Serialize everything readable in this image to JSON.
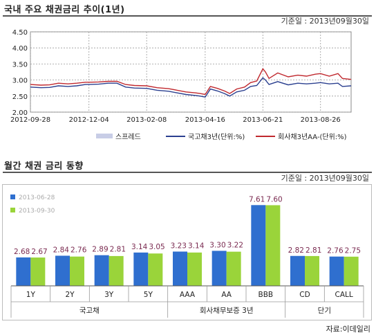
{
  "section1": {
    "title": "국내 주요 채권금리 추이(1년)",
    "ref_date": "기준일 : 2013년09월30일"
  },
  "section2": {
    "title": "월간 채권 금리 동향",
    "ref_date": "기준일 : 2013년09월30일"
  },
  "source": "자료:이데일리",
  "chart_data": [
    {
      "type": "line",
      "title": "국내 주요 채권금리 추이(1년)",
      "ylim": [
        2.0,
        4.5
      ],
      "yticks": [
        "4.50",
        "4.00",
        "3.50",
        "3.00",
        "2.50",
        "2.00"
      ],
      "xticks": [
        "2012-09-28",
        "2012-12-04",
        "2013-02-08",
        "2013-04-16",
        "2013-06-21",
        "2013-08-26"
      ],
      "x_range": [
        "2012-09-28",
        "2013-09-30"
      ],
      "grid": true,
      "legend_position": "bottom",
      "series": [
        {
          "name": "스프레드",
          "color": "#c8cde6",
          "points": []
        },
        {
          "name": "국고채3년(단위:%)",
          "color": "#2a3f8f",
          "points": [
            [
              "2012-09-28",
              2.78
            ],
            [
              "2012-10-10",
              2.76
            ],
            [
              "2012-10-20",
              2.77
            ],
            [
              "2012-10-30",
              2.82
            ],
            [
              "2012-11-10",
              2.8
            ],
            [
              "2012-11-20",
              2.82
            ],
            [
              "2012-11-30",
              2.86
            ],
            [
              "2012-12-04",
              2.86
            ],
            [
              "2012-12-15",
              2.87
            ],
            [
              "2012-12-26",
              2.9
            ],
            [
              "2013-01-05",
              2.9
            ],
            [
              "2013-01-15",
              2.78
            ],
            [
              "2013-01-25",
              2.75
            ],
            [
              "2013-02-08",
              2.74
            ],
            [
              "2013-02-20",
              2.68
            ],
            [
              "2013-03-05",
              2.65
            ],
            [
              "2013-03-15",
              2.6
            ],
            [
              "2013-03-25",
              2.55
            ],
            [
              "2013-04-05",
              2.52
            ],
            [
              "2013-04-10",
              2.5
            ],
            [
              "2013-04-16",
              2.47
            ],
            [
              "2013-04-22",
              2.72
            ],
            [
              "2013-04-30",
              2.66
            ],
            [
              "2013-05-08",
              2.58
            ],
            [
              "2013-05-14",
              2.5
            ],
            [
              "2013-05-22",
              2.63
            ],
            [
              "2013-05-31",
              2.68
            ],
            [
              "2013-06-07",
              2.8
            ],
            [
              "2013-06-14",
              2.83
            ],
            [
              "2013-06-21",
              3.07
            ],
            [
              "2013-06-24",
              3.0
            ],
            [
              "2013-06-28",
              2.86
            ],
            [
              "2013-07-08",
              2.95
            ],
            [
              "2013-07-20",
              2.85
            ],
            [
              "2013-07-31",
              2.9
            ],
            [
              "2013-08-10",
              2.88
            ],
            [
              "2013-08-20",
              2.9
            ],
            [
              "2013-08-26",
              2.92
            ],
            [
              "2013-09-05",
              2.88
            ],
            [
              "2013-09-15",
              2.9
            ],
            [
              "2013-09-20",
              2.8
            ],
            [
              "2013-09-30",
              2.82
            ]
          ]
        },
        {
          "name": "회사채3년AA-(단위:%)",
          "color": "#c0282e",
          "points": [
            [
              "2012-09-28",
              2.86
            ],
            [
              "2012-10-10",
              2.84
            ],
            [
              "2012-10-20",
              2.85
            ],
            [
              "2012-10-30",
              2.9
            ],
            [
              "2012-11-10",
              2.88
            ],
            [
              "2012-11-20",
              2.9
            ],
            [
              "2012-11-30",
              2.93
            ],
            [
              "2012-12-04",
              2.93
            ],
            [
              "2012-12-15",
              2.94
            ],
            [
              "2012-12-26",
              2.96
            ],
            [
              "2013-01-05",
              2.96
            ],
            [
              "2013-01-15",
              2.86
            ],
            [
              "2013-01-25",
              2.83
            ],
            [
              "2013-02-08",
              2.82
            ],
            [
              "2013-02-20",
              2.76
            ],
            [
              "2013-03-05",
              2.73
            ],
            [
              "2013-03-15",
              2.68
            ],
            [
              "2013-03-25",
              2.63
            ],
            [
              "2013-04-05",
              2.6
            ],
            [
              "2013-04-10",
              2.58
            ],
            [
              "2013-04-16",
              2.55
            ],
            [
              "2013-04-22",
              2.8
            ],
            [
              "2013-04-30",
              2.74
            ],
            [
              "2013-05-08",
              2.66
            ],
            [
              "2013-05-14",
              2.58
            ],
            [
              "2013-05-22",
              2.72
            ],
            [
              "2013-05-31",
              2.78
            ],
            [
              "2013-06-07",
              2.92
            ],
            [
              "2013-06-14",
              2.97
            ],
            [
              "2013-06-21",
              3.35
            ],
            [
              "2013-06-24",
              3.25
            ],
            [
              "2013-06-28",
              3.05
            ],
            [
              "2013-07-08",
              3.22
            ],
            [
              "2013-07-20",
              3.1
            ],
            [
              "2013-07-31",
              3.15
            ],
            [
              "2013-08-10",
              3.12
            ],
            [
              "2013-08-20",
              3.18
            ],
            [
              "2013-08-26",
              3.2
            ],
            [
              "2013-09-05",
              3.12
            ],
            [
              "2013-09-15",
              3.2
            ],
            [
              "2013-09-20",
              3.05
            ],
            [
              "2013-09-30",
              3.02
            ]
          ]
        }
      ]
    },
    {
      "type": "bar",
      "title": "월간 채권 금리 동향",
      "categories": [
        "1Y",
        "2Y",
        "3Y",
        "5Y",
        "AAA",
        "AA",
        "BBB",
        "CD",
        "CALL"
      ],
      "groups": [
        {
          "label": "국고채",
          "categories": [
            "1Y",
            "2Y",
            "3Y",
            "5Y"
          ]
        },
        {
          "label": "회사채무보증 3년",
          "categories": [
            "AAA",
            "AA",
            "BBB"
          ]
        },
        {
          "label": "단기",
          "categories": [
            "CD",
            "CALL"
          ]
        }
      ],
      "series": [
        {
          "name": "2013-06-28",
          "color": "#2f6fcf",
          "values": [
            2.68,
            2.84,
            2.89,
            3.14,
            3.23,
            3.3,
            7.61,
            2.82,
            2.76
          ]
        },
        {
          "name": "2013-09-30",
          "color": "#9ad43a",
          "values": [
            2.67,
            2.76,
            2.81,
            3.05,
            3.14,
            3.22,
            7.6,
            2.81,
            2.75
          ]
        }
      ],
      "value_labels": [
        [
          "2.68",
          "2.67"
        ],
        [
          "2.84",
          "2.76"
        ],
        [
          "2.89",
          "2.81"
        ],
        [
          "3.14",
          "3.05"
        ],
        [
          "3.23",
          "3.14"
        ],
        [
          "3.30",
          "3.22"
        ],
        [
          "7.61",
          "7.60"
        ],
        [
          "2.82",
          "2.81"
        ],
        [
          "2.76",
          "2.75"
        ]
      ],
      "label_color": "#7a2a50",
      "ylim": [
        0,
        9
      ],
      "legend_position": "top-left"
    }
  ]
}
